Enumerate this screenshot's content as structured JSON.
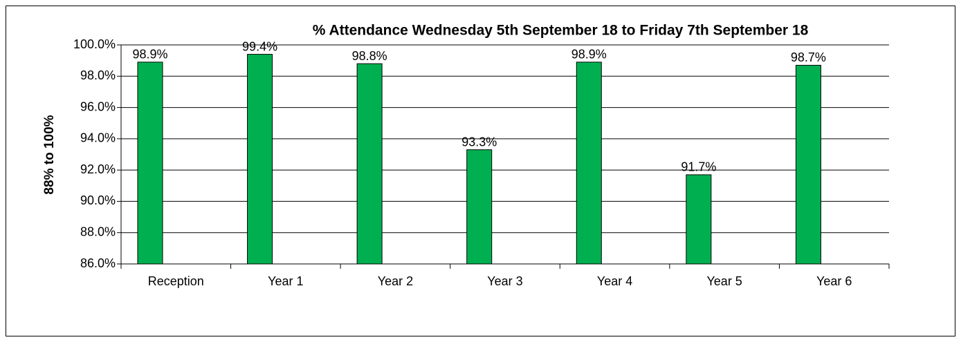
{
  "chart_data": {
    "type": "bar",
    "title": "% Attendance  Wednesday 5th September 18 to Friday 7th September 18",
    "y_label": "88% to 100%",
    "categories": [
      "Reception",
      "Year 1",
      "Year 2",
      "Year 3",
      "Year 4",
      "Year 5",
      "Year 6"
    ],
    "values": [
      98.9,
      99.4,
      98.8,
      93.3,
      98.9,
      91.7,
      98.7
    ],
    "value_labels": [
      "98.9%",
      "99.4%",
      "98.8%",
      "93.3%",
      "98.9%",
      "91.7%",
      "98.7%"
    ],
    "color": "#00b050",
    "ylim": [
      86,
      100
    ],
    "yticks": [
      {
        "value": 86,
        "label": "86.0%"
      },
      {
        "value": 88,
        "label": "88.0%"
      },
      {
        "value": 90,
        "label": "90.0%"
      },
      {
        "value": 92,
        "label": "92.0%"
      },
      {
        "value": 94,
        "label": "94.0%"
      },
      {
        "value": 96,
        "label": "96.0%"
      },
      {
        "value": 98,
        "label": "98.0%"
      },
      {
        "value": 100,
        "label": "100.0%"
      }
    ],
    "grid": true
  }
}
